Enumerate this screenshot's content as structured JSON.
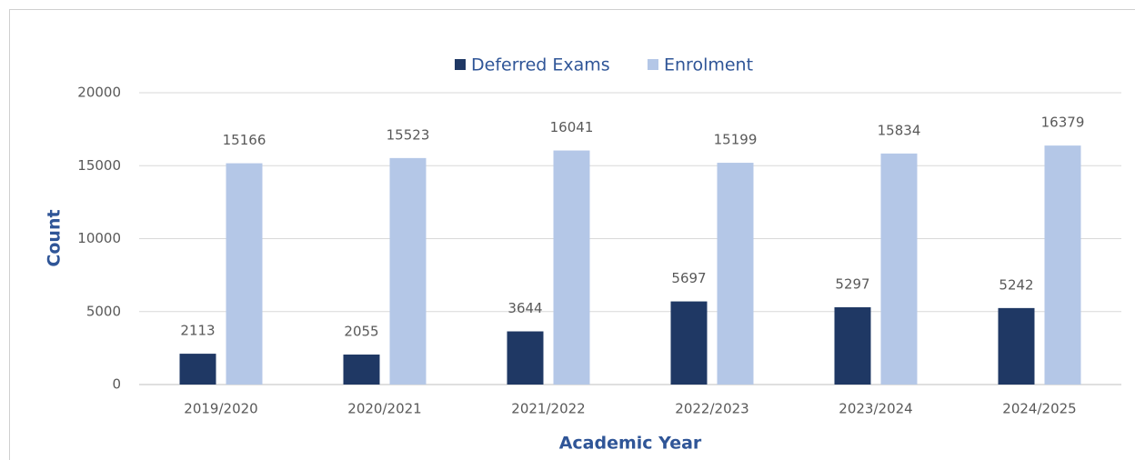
{
  "chart_data": {
    "type": "bar",
    "x_label": "Academic Year",
    "y_label": "Count",
    "categories": [
      "2019/2020",
      "2020/2021",
      "2021/2022",
      "2022/2023",
      "2023/2024",
      "2024/2025"
    ],
    "series": [
      {
        "name": "Deferred Exams",
        "color": "#1f3864",
        "values": [
          2113,
          2055,
          3644,
          5697,
          5297,
          5242
        ]
      },
      {
        "name": "Enrolment",
        "color": "#b4c7e7",
        "values": [
          15166,
          15523,
          16041,
          15199,
          15834,
          16379
        ]
      }
    ],
    "ylim": [
      0,
      20000
    ],
    "yticks": [
      0,
      5000,
      10000,
      15000,
      20000
    ],
    "grid": true,
    "legend": "top"
  }
}
